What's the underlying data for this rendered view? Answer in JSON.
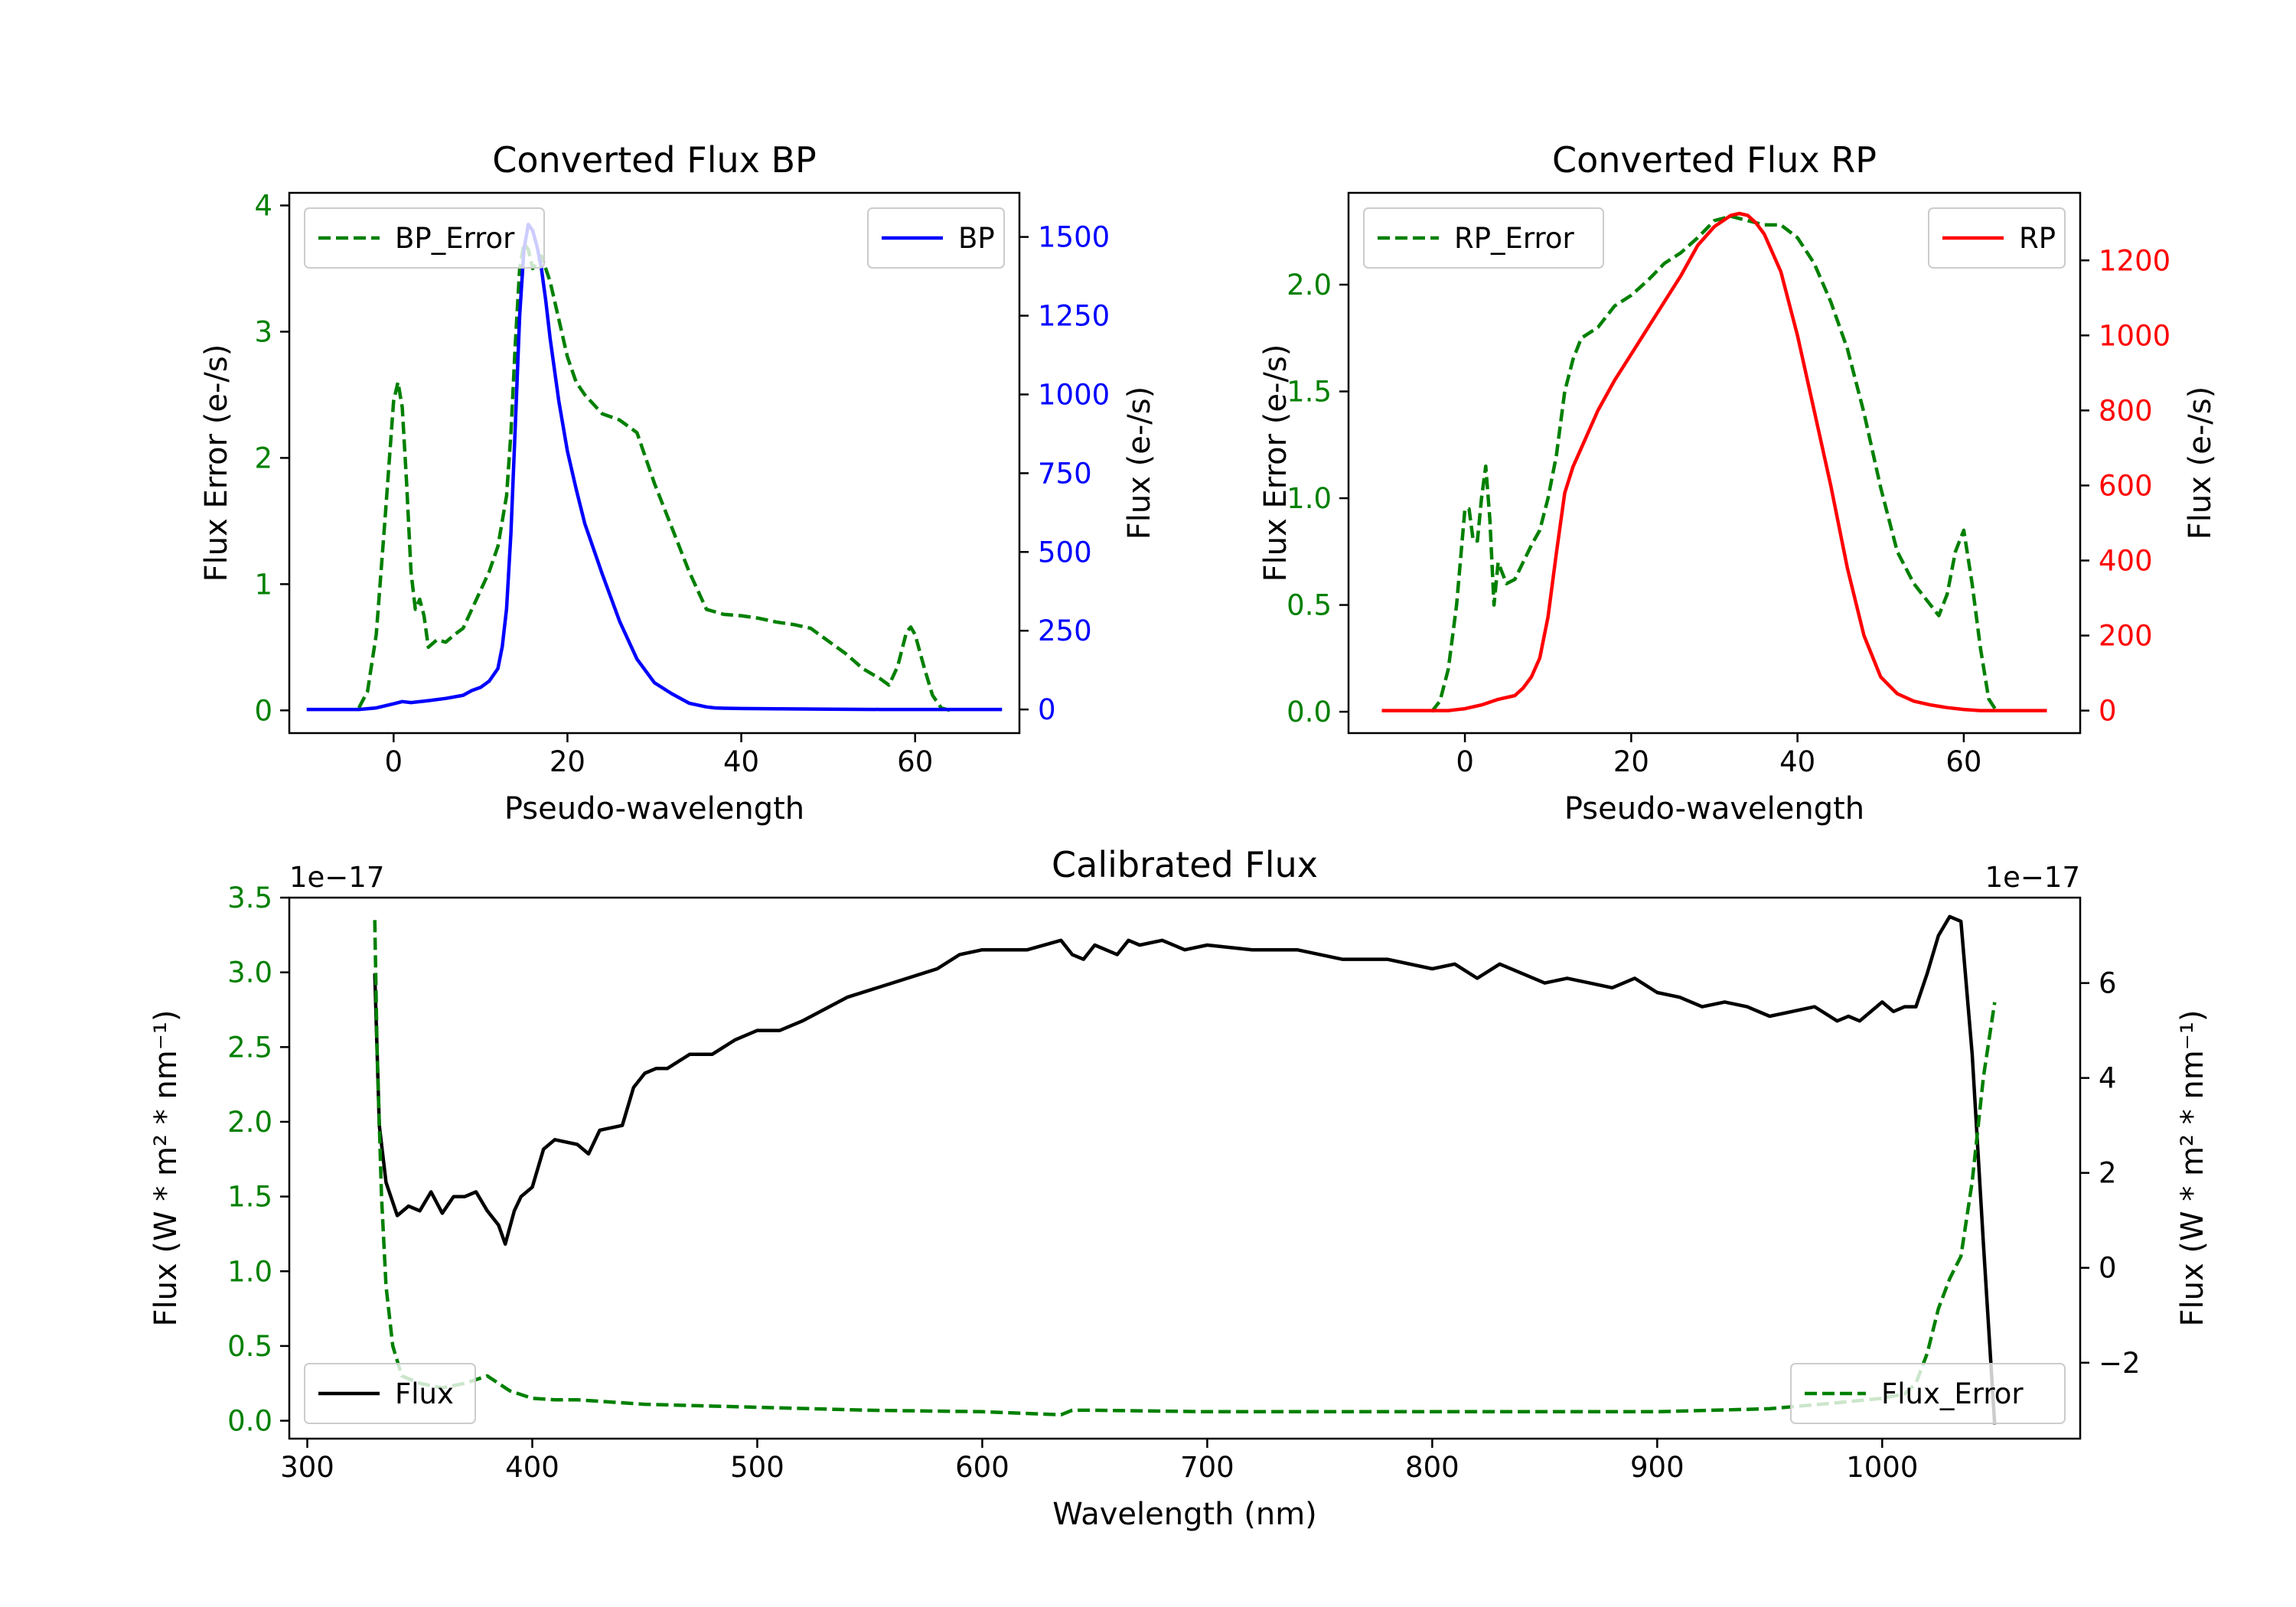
{
  "colors": {
    "green": "#008000",
    "blue": "#0000ff",
    "red": "#ff0000",
    "black": "#000000"
  },
  "chart_data": [
    {
      "id": "bp",
      "type": "line",
      "title": "Converted Flux BP",
      "xlabel": "Pseudo-wavelength",
      "xlim": [
        -12,
        72
      ],
      "xticks": [
        0,
        20,
        40,
        60
      ],
      "left_axis": {
        "label": "Flux Error (e-/s)",
        "color": "#008000",
        "lim": [
          -0.18,
          4.1
        ],
        "ticks": [
          0,
          1,
          2,
          3,
          4
        ]
      },
      "right_axis": {
        "label": "Flux (e-/s)",
        "color": "#0000ff",
        "lim": [
          -75,
          1640
        ],
        "ticks": [
          0,
          250,
          500,
          750,
          1000,
          1250,
          1500
        ]
      },
      "series": [
        {
          "name": "BP_Error",
          "axis": "left",
          "style": "dashed",
          "color": "#008000",
          "x": [
            -4,
            -3,
            -2,
            -1,
            0,
            0.5,
            1,
            1.5,
            2,
            2.5,
            3,
            3.5,
            4,
            5,
            6,
            7,
            8,
            9,
            10,
            11,
            12,
            13,
            13.5,
            14,
            14.5,
            15,
            15.5,
            16,
            17,
            18,
            19,
            20,
            21,
            22,
            24,
            26,
            28,
            29,
            30,
            32,
            34,
            36,
            38,
            40,
            42,
            44,
            46,
            48,
            50,
            52,
            54,
            56,
            57,
            58,
            59,
            59.5,
            60,
            61,
            62,
            63,
            64
          ],
          "values": [
            0.02,
            0.15,
            0.6,
            1.5,
            2.45,
            2.6,
            2.4,
            1.8,
            1.1,
            0.8,
            0.88,
            0.75,
            0.5,
            0.56,
            0.54,
            0.6,
            0.65,
            0.8,
            0.95,
            1.1,
            1.3,
            1.7,
            2.2,
            2.9,
            3.5,
            3.7,
            3.65,
            3.5,
            3.6,
            3.4,
            3.1,
            2.8,
            2.6,
            2.5,
            2.35,
            2.3,
            2.2,
            2.0,
            1.8,
            1.45,
            1.1,
            0.8,
            0.76,
            0.75,
            0.73,
            0.7,
            0.68,
            0.65,
            0.55,
            0.45,
            0.33,
            0.25,
            0.2,
            0.35,
            0.62,
            0.66,
            0.6,
            0.35,
            0.12,
            0.02,
            0.0
          ]
        },
        {
          "name": "BP",
          "axis": "right",
          "style": "solid",
          "color": "#0000ff",
          "x": [
            -10,
            -4,
            -2,
            0,
            1,
            2,
            4,
            6,
            8,
            9,
            10,
            11,
            12,
            12.5,
            13,
            13.5,
            14,
            14.5,
            15,
            15.5,
            16,
            16.5,
            17,
            17.5,
            18,
            19,
            20,
            21,
            22,
            24,
            26,
            28,
            30,
            32,
            34,
            36,
            37,
            38,
            40,
            44,
            50,
            56,
            60,
            64,
            70
          ],
          "values": [
            0,
            0,
            5,
            18,
            25,
            22,
            28,
            35,
            45,
            60,
            70,
            90,
            130,
            200,
            320,
            560,
            900,
            1250,
            1460,
            1540,
            1520,
            1470,
            1400,
            1300,
            1180,
            980,
            820,
            700,
            590,
            430,
            280,
            160,
            85,
            50,
            20,
            8,
            5,
            4,
            3,
            2,
            1,
            0,
            0,
            0,
            0
          ]
        }
      ],
      "legends": [
        "BP_Error",
        "BP"
      ]
    },
    {
      "id": "rp",
      "type": "line",
      "title": "Converted Flux RP",
      "xlabel": "Pseudo-wavelength",
      "xlim": [
        -14,
        74
      ],
      "xticks": [
        0,
        20,
        40,
        60
      ],
      "left_axis": {
        "label": "Flux Error (e-/s)",
        "color": "#008000",
        "lim": [
          -0.1,
          2.43
        ],
        "ticks": [
          0.0,
          0.5,
          1.0,
          1.5,
          2.0
        ]
      },
      "right_axis": {
        "label": "Flux (e-/s)",
        "color": "#ff0000",
        "lim": [
          -60,
          1380
        ],
        "ticks": [
          0,
          200,
          400,
          600,
          800,
          1000,
          1200
        ]
      },
      "series": [
        {
          "name": "RP_Error",
          "axis": "left",
          "style": "dashed",
          "color": "#008000",
          "x": [
            -4,
            -3,
            -2,
            -1,
            0,
            0.5,
            1,
            1.5,
            2,
            2.5,
            3,
            3.5,
            4,
            5,
            6,
            7,
            8,
            9,
            10,
            11,
            12,
            13,
            14,
            16,
            18,
            20,
            22,
            24,
            26,
            28,
            30,
            32,
            34,
            36,
            38,
            40,
            42,
            44,
            46,
            48,
            50,
            52,
            54,
            56,
            57,
            58,
            59,
            60,
            61,
            62,
            63,
            64
          ],
          "values": [
            0.0,
            0.05,
            0.2,
            0.5,
            0.95,
            0.95,
            0.8,
            0.8,
            1.0,
            1.15,
            0.9,
            0.5,
            0.7,
            0.6,
            0.62,
            0.7,
            0.78,
            0.85,
            1.0,
            1.2,
            1.5,
            1.65,
            1.75,
            1.8,
            1.9,
            1.95,
            2.02,
            2.1,
            2.15,
            2.22,
            2.3,
            2.32,
            2.3,
            2.28,
            2.28,
            2.22,
            2.1,
            1.92,
            1.7,
            1.4,
            1.05,
            0.75,
            0.6,
            0.5,
            0.45,
            0.55,
            0.75,
            0.85,
            0.6,
            0.3,
            0.06,
            0.0
          ]
        },
        {
          "name": "RP",
          "axis": "right",
          "style": "solid",
          "color": "#ff0000",
          "x": [
            -10,
            -2,
            0,
            2,
            4,
            6,
            7,
            8,
            9,
            10,
            11,
            12,
            13,
            14,
            16,
            18,
            20,
            22,
            24,
            26,
            28,
            30,
            32,
            33,
            34,
            35,
            36,
            38,
            40,
            42,
            44,
            46,
            48,
            50,
            52,
            54,
            56,
            58,
            60,
            62,
            64,
            70
          ],
          "values": [
            0,
            0,
            5,
            15,
            30,
            40,
            60,
            90,
            140,
            250,
            420,
            580,
            650,
            700,
            800,
            880,
            950,
            1020,
            1090,
            1160,
            1240,
            1290,
            1320,
            1325,
            1320,
            1300,
            1270,
            1170,
            1000,
            800,
            600,
            380,
            200,
            90,
            45,
            25,
            15,
            8,
            3,
            0,
            0,
            0
          ]
        }
      ],
      "legends": [
        "RP_Error",
        "RP"
      ]
    },
    {
      "id": "cal",
      "type": "line",
      "title": "Calibrated Flux",
      "xlabel": "Wavelength (nm)",
      "xlim": [
        292,
        1088
      ],
      "xticks": [
        300,
        400,
        500,
        600,
        700,
        800,
        900,
        1000
      ],
      "left_axis": {
        "label": "Flux (W * m² * nm⁻¹)",
        "color": "#008000",
        "offset": "1e−17",
        "lim": [
          -0.12,
          3.5
        ],
        "ticks": [
          0.0,
          0.5,
          1.0,
          1.5,
          2.0,
          2.5,
          3.0,
          3.5
        ]
      },
      "right_axis": {
        "label": "Flux (W * m² * nm⁻¹)",
        "color": "#000000",
        "offset": "1e−17",
        "lim": [
          -3.6,
          7.8
        ],
        "ticks": [
          -2,
          0,
          2,
          4,
          6
        ]
      },
      "series": [
        {
          "name": "Flux",
          "axis": "right",
          "style": "solid",
          "color": "#000000",
          "x": [
            330,
            332,
            335,
            340,
            345,
            350,
            355,
            360,
            365,
            370,
            375,
            380,
            385,
            388,
            392,
            395,
            400,
            405,
            410,
            420,
            425,
            430,
            440,
            445,
            450,
            455,
            460,
            470,
            480,
            490,
            500,
            510,
            520,
            540,
            560,
            580,
            590,
            600,
            620,
            635,
            640,
            645,
            650,
            660,
            665,
            670,
            680,
            690,
            700,
            720,
            740,
            760,
            780,
            800,
            810,
            820,
            830,
            840,
            850,
            860,
            870,
            880,
            890,
            900,
            910,
            920,
            930,
            940,
            950,
            960,
            970,
            980,
            985,
            990,
            1000,
            1005,
            1010,
            1015,
            1020,
            1025,
            1030,
            1035,
            1040,
            1045,
            1050
          ],
          "values": [
            6.2,
            3.0,
            1.8,
            1.1,
            1.3,
            1.2,
            1.6,
            1.15,
            1.5,
            1.5,
            1.6,
            1.2,
            0.9,
            0.5,
            1.2,
            1.5,
            1.7,
            2.5,
            2.7,
            2.6,
            2.4,
            2.9,
            3.0,
            3.8,
            4.1,
            4.2,
            4.2,
            4.5,
            4.5,
            4.8,
            5.0,
            5.0,
            5.2,
            5.7,
            6.0,
            6.3,
            6.6,
            6.7,
            6.7,
            6.9,
            6.6,
            6.5,
            6.8,
            6.6,
            6.9,
            6.8,
            6.9,
            6.7,
            6.8,
            6.7,
            6.7,
            6.5,
            6.5,
            6.3,
            6.4,
            6.1,
            6.4,
            6.2,
            6.0,
            6.1,
            6.0,
            5.9,
            6.1,
            5.8,
            5.7,
            5.5,
            5.6,
            5.5,
            5.3,
            5.4,
            5.5,
            5.2,
            5.3,
            5.2,
            5.6,
            5.4,
            5.5,
            5.5,
            6.2,
            7.0,
            7.4,
            7.3,
            4.5,
            0.5,
            -3.3
          ]
        },
        {
          "name": "Flux_Error",
          "axis": "left",
          "style": "dashed",
          "color": "#008000",
          "x": [
            330,
            331,
            333,
            335,
            338,
            342,
            350,
            360,
            370,
            380,
            385,
            390,
            400,
            410,
            420,
            430,
            450,
            500,
            550,
            600,
            635,
            640,
            650,
            700,
            750,
            800,
            900,
            950,
            980,
            1000,
            1010,
            1015,
            1020,
            1025,
            1030,
            1035,
            1040,
            1045,
            1050
          ],
          "values": [
            3.35,
            2.5,
            1.5,
            0.9,
            0.5,
            0.3,
            0.25,
            0.22,
            0.25,
            0.3,
            0.25,
            0.2,
            0.15,
            0.14,
            0.14,
            0.13,
            0.11,
            0.09,
            0.07,
            0.06,
            0.04,
            0.07,
            0.07,
            0.06,
            0.06,
            0.06,
            0.06,
            0.08,
            0.12,
            0.15,
            0.18,
            0.25,
            0.45,
            0.75,
            0.95,
            1.1,
            1.6,
            2.3,
            2.8
          ]
        }
      ],
      "legends": [
        "Flux",
        "Flux_Error"
      ]
    }
  ]
}
